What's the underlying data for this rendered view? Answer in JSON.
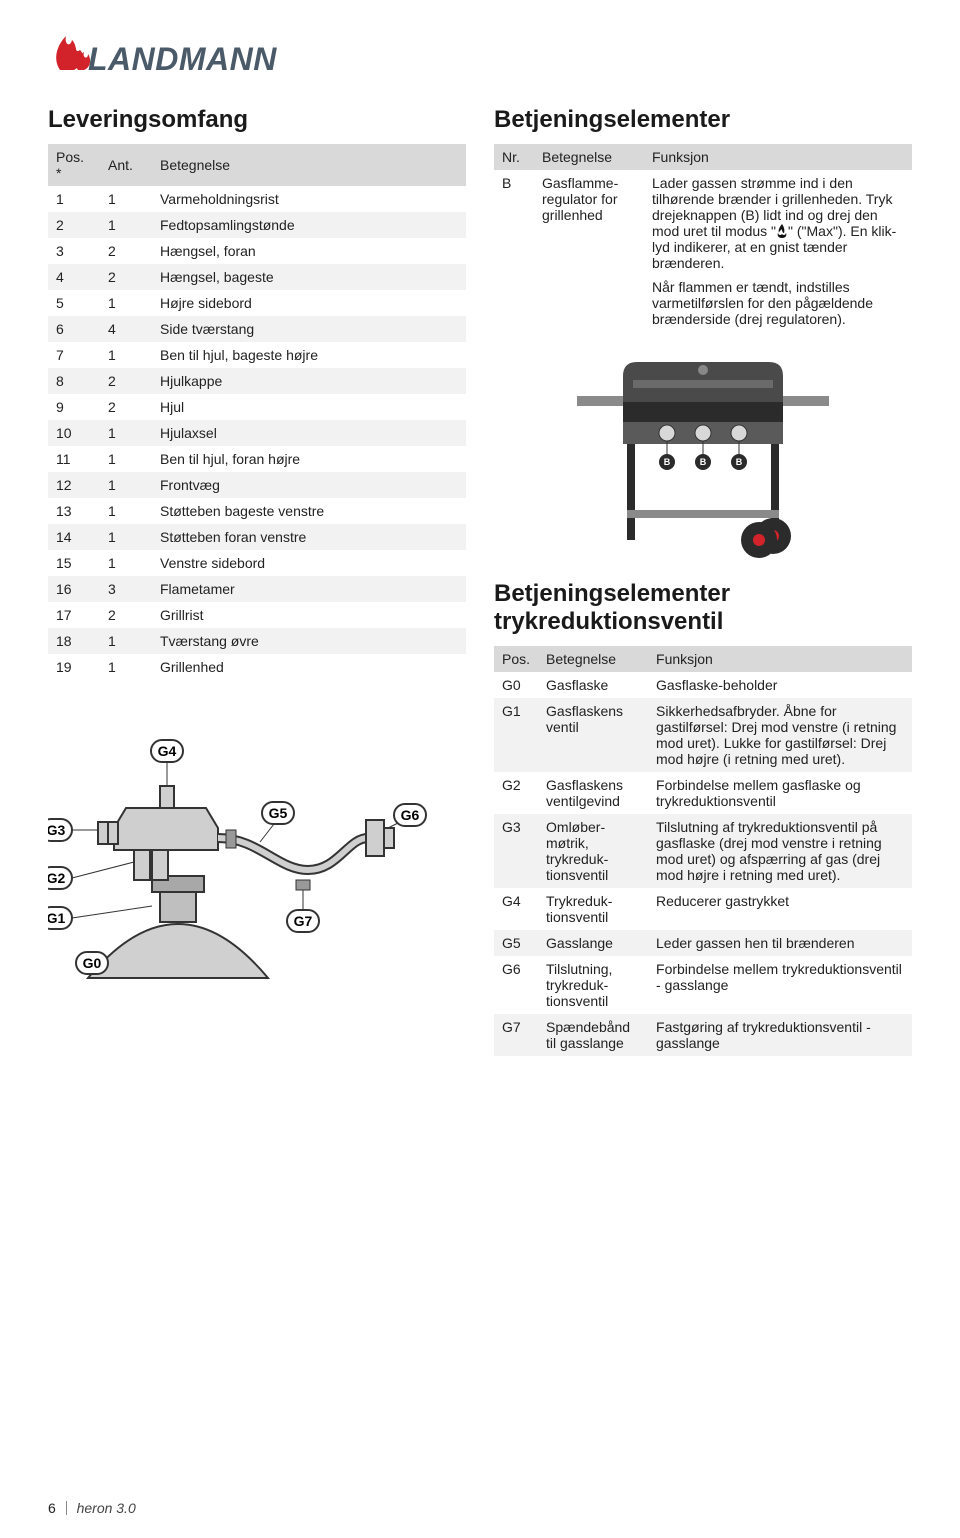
{
  "brand": {
    "name": "LANDMANN",
    "flame_color": "#d2232a",
    "text_color": "#4a5a68"
  },
  "left": {
    "heading": "Leveringsomfang",
    "headers": [
      "Pos. *",
      "Ant.",
      "Betegnelse"
    ],
    "rows": [
      [
        "1",
        "1",
        "Varmeholdningsrist"
      ],
      [
        "2",
        "1",
        "Fedtopsamlingstønde"
      ],
      [
        "3",
        "2",
        "Hængsel, foran"
      ],
      [
        "4",
        "2",
        "Hængsel, bageste"
      ],
      [
        "5",
        "1",
        "Højre sidebord"
      ],
      [
        "6",
        "4",
        "Side tværstang"
      ],
      [
        "7",
        "1",
        "Ben til hjul, bageste højre"
      ],
      [
        "8",
        "2",
        "Hjulkappe"
      ],
      [
        "9",
        "2",
        "Hjul"
      ],
      [
        "10",
        "1",
        "Hjulaxsel"
      ],
      [
        "11",
        "1",
        "Ben til hjul, foran højre"
      ],
      [
        "12",
        "1",
        "Frontvæg"
      ],
      [
        "13",
        "1",
        "Støtteben bageste venstre"
      ],
      [
        "14",
        "1",
        "Støtteben foran venstre"
      ],
      [
        "15",
        "1",
        "Venstre sidebord"
      ],
      [
        "16",
        "3",
        "Flametamer"
      ],
      [
        "17",
        "2",
        "Grillrist"
      ],
      [
        "18",
        "1",
        "Tværstang øvre"
      ],
      [
        "19",
        "1",
        "Grillenhed"
      ]
    ]
  },
  "right_a": {
    "heading": "Betjeningselementer",
    "headers": [
      "Nr.",
      "Betegnelse",
      "Funksjon"
    ],
    "row": {
      "nr": "B",
      "bet": "Gasflamme­regulator for grillenhed",
      "funk1": "Lader gassen strømme ind i den tilhørende brænder i grillenheden. Tryk drejeknappen (B) lidt ind og drej den mod uret til modus \"",
      "funk1b": "\" (\"Max\"). En klik-lyd indikerer, at en gnist tænder brænderen.",
      "funk2": "Når flammen er tændt, indstilles varmetilførslen for den pågældende brænderside (drej regulatoren)."
    }
  },
  "right_b": {
    "heading": "Betjeningselementer trykreduktionsventil",
    "headers": [
      "Pos.",
      "Betegnelse",
      "Funksjon"
    ],
    "rows": [
      [
        "G0",
        "Gasflaske",
        "Gasflaske-beholder"
      ],
      [
        "G1",
        "Gasflaskens ventil",
        "Sikkerhedsafbryder. Åbne for gastilførsel: Drej mod venstre (i retning mod uret). Lukke for gastilførsel: Drej mod højre (i retning med uret)."
      ],
      [
        "G2",
        "Gasflaskens ventilgevind",
        "Forbindelse mellem gasflaske og trykreduktionsventil"
      ],
      [
        "G3",
        "Omløber­møtrik, trykreduk­tionsventil",
        "Tilslutning af trykreduktionsventil på gasflaske (drej mod venstre i retning mod uret) og afspærring af gas (drej mod højre i retning med uret)."
      ],
      [
        "G4",
        "Trykreduk­tionsventil",
        "Reducerer gastrykket"
      ],
      [
        "G5",
        "Gasslange",
        "Leder gassen hen til brænderen"
      ],
      [
        "G6",
        "Tilslutning, trykreduk­tionsventil",
        "Forbindelse mellem trykreduktionsventil - gasslange"
      ],
      [
        "G7",
        "Spændebånd til gasslange",
        "Fastgøring af trykreduktionsventil - gasslange"
      ]
    ]
  },
  "footer": {
    "page": "6",
    "name": "heron 3.0"
  },
  "colors": {
    "header_bg": "#d9d9d9",
    "row_alt_bg": "#f2f2f2",
    "text": "#222222",
    "accent_red": "#d2232a",
    "grill_body": "#5a5a5a",
    "grill_dark": "#2b2b2b"
  },
  "valve_labels": [
    "G0",
    "G1",
    "G2",
    "G3",
    "G4",
    "G5",
    "G6",
    "G7"
  ]
}
